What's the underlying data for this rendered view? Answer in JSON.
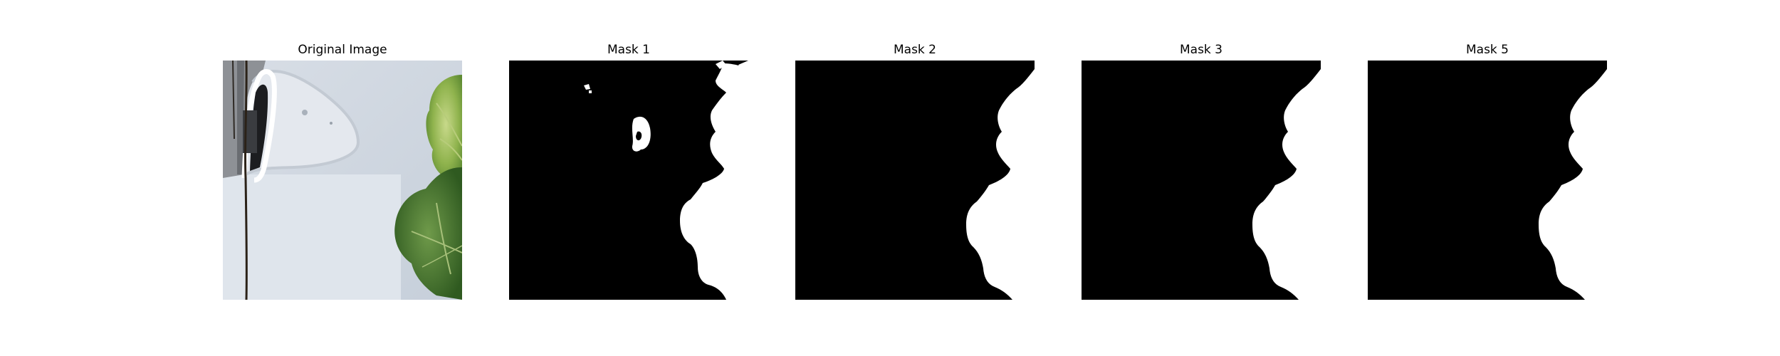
{
  "figure": {
    "background": "#ffffff"
  },
  "panels": [
    {
      "title": "Original Image"
    },
    {
      "title": "Mask 1"
    },
    {
      "title": "Mask 2"
    },
    {
      "title": "Mask 3"
    },
    {
      "title": "Mask 5"
    }
  ],
  "colors": {
    "mask_foreground": "#ffffff",
    "mask_background": "#000000",
    "leaf_green": "#8fb34d",
    "dark_leaf": "#3f6f2a",
    "surface_gray": "#c9d1dc"
  }
}
